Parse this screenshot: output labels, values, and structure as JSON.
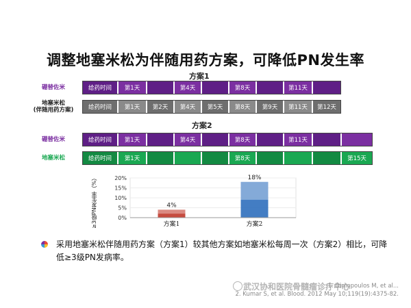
{
  "title": "调整地塞米松为伴随用药方案，可降低PN发生率",
  "scheme1": {
    "label": "方案1",
    "rows": [
      {
        "name": "硼替佐米",
        "name_lines": [
          "硼替佐米"
        ],
        "color": "#7b2fa1",
        "style": "purple",
        "cells": [
          "给药时间",
          "第1天",
          "",
          "第4天",
          "",
          "第8天",
          "",
          "第11天",
          ""
        ]
      },
      {
        "name": "地塞米松（伴随用药方案）",
        "name_lines": [
          "地塞米松",
          "(伴随用药方案)"
        ],
        "color": "#222222",
        "style": "gray",
        "cells": [
          "给药时间",
          "第1天",
          "第2天",
          "第4天",
          "第5天",
          "第8天",
          "第9天",
          "第11天",
          "第12天"
        ]
      }
    ]
  },
  "scheme2": {
    "label": "方案2",
    "rows": [
      {
        "name": "硼替佐米",
        "name_lines": [
          "硼替佐米"
        ],
        "color": "#7b2fa1",
        "style": "purple",
        "cells": [
          "给药时间",
          "第1天",
          "",
          "第4天",
          "",
          "第8天",
          "",
          "第11天",
          "",
          ""
        ]
      },
      {
        "name": "地塞米松",
        "name_lines": [
          "地塞米松"
        ],
        "color": "#1aa852",
        "style": "green",
        "cells": [
          "给药时间",
          "第1天",
          "",
          "",
          "",
          "第8天",
          "",
          "",
          "",
          "第15天"
        ]
      }
    ]
  },
  "chart_data": {
    "type": "bar",
    "categories": [
      "方案1",
      "方案2"
    ],
    "values": [
      4,
      18
    ],
    "value_labels": [
      "4%",
      "18%"
    ],
    "ylabel": "≥3级PN发生率（%）",
    "yticks": [
      "0%",
      "5%",
      "10%",
      "15%",
      "20%"
    ],
    "ylim": [
      0,
      20
    ],
    "colors": [
      "#c0392b",
      "#2f6fbd"
    ]
  },
  "summary": "采用地塞米松伴随用药方案（方案1）较其他方案如地塞米松每周一次（方案2）相比，可降低≥3级PN发病率。",
  "references": [
    "1. Dimopoulos M, et al...",
    "2. Kumar S, et al. Blood. 2012 May 10;119(19):4375-82."
  ],
  "watermark": "武汉协和医院骨髓瘤诊疗中心"
}
